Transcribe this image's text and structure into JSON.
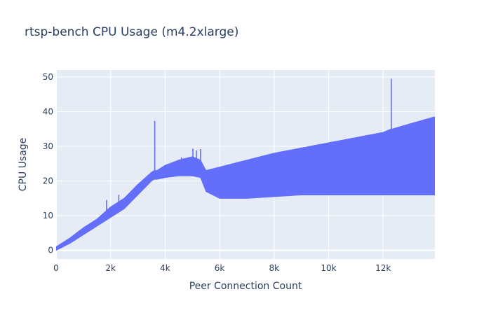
{
  "chart_data": {
    "type": "line",
    "title": "rtsp-bench CPU Usage (m4.2xlarge)",
    "xlabel": "Peer Connection Count",
    "ylabel": "CPU Usage",
    "xlim": [
      0,
      13900
    ],
    "ylim": [
      -2.5,
      52
    ],
    "x_ticks": [
      0,
      2000,
      4000,
      6000,
      8000,
      10000,
      12000
    ],
    "x_tick_labels": [
      "0",
      "2k",
      "4k",
      "6k",
      "8k",
      "10k",
      "12k"
    ],
    "y_ticks": [
      0,
      10,
      20,
      30,
      40,
      50
    ],
    "y_tick_labels": [
      "0",
      "10",
      "20",
      "30",
      "40",
      "50"
    ],
    "grid": true,
    "legend": "none",
    "series": [
      {
        "color": "#636efa",
        "x": [
          0,
          500,
          1000,
          1500,
          2000,
          2500,
          3000,
          3500,
          3600,
          3700,
          4000,
          4500,
          5000,
          5300,
          5500,
          6000,
          7000,
          8000,
          9000,
          10000,
          11000,
          12000,
          12300,
          12350,
          13000,
          13900
        ],
        "low": [
          0,
          2,
          4.5,
          7,
          9.5,
          12,
          16,
          20,
          20.5,
          20.5,
          21,
          21.5,
          21.5,
          21,
          17,
          15,
          15,
          15.5,
          16,
          16,
          16,
          16,
          16,
          16,
          16,
          16
        ],
        "high": [
          1,
          3.5,
          6.5,
          9,
          12.5,
          15,
          19,
          22.5,
          23,
          23,
          24.5,
          26,
          27,
          26,
          23,
          24,
          26,
          28,
          29.5,
          31,
          32.5,
          34,
          35,
          35,
          36.5,
          38.5
        ],
        "spikes": [
          {
            "x": 1850,
            "y": 14.5
          },
          {
            "x": 2300,
            "y": 16
          },
          {
            "x": 3620,
            "y": 37.3
          },
          {
            "x": 4600,
            "y": 26.8
          },
          {
            "x": 5020,
            "y": 29.3
          },
          {
            "x": 5150,
            "y": 28.8
          },
          {
            "x": 5300,
            "y": 29.2
          },
          {
            "x": 12300,
            "y": 49.5
          }
        ]
      }
    ]
  }
}
